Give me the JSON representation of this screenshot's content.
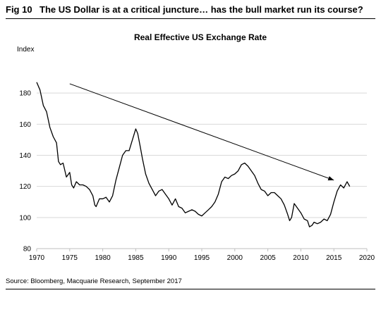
{
  "figure": {
    "label": "Fig 10",
    "title": "The US Dollar is at a critical juncture… has the bull market run its course?",
    "source": "Source: Bloomberg, Macquarie Research, September 2017"
  },
  "chart_data": {
    "type": "line",
    "title": "Real Effective US Exchange Rate",
    "ylabel": "Index",
    "xlabel": "",
    "xlim": [
      1970,
      2020
    ],
    "ylim": [
      80,
      200
    ],
    "x_ticks": [
      1970,
      1975,
      1980,
      1985,
      1990,
      1995,
      2000,
      2005,
      2010,
      2015,
      2020
    ],
    "y_ticks": [
      80,
      100,
      120,
      140,
      160,
      180
    ],
    "grid": "horizontal",
    "legend": "none",
    "colors": {
      "line": "#000000",
      "grid": "#d9d9d9",
      "axis": "#bfbfbf"
    },
    "series": [
      {
        "values": [
          [
            1970.0,
            187
          ],
          [
            1970.5,
            182
          ],
          [
            1971.0,
            172
          ],
          [
            1971.5,
            168
          ],
          [
            1972.0,
            158
          ],
          [
            1972.5,
            152
          ],
          [
            1973.0,
            148
          ],
          [
            1973.3,
            136
          ],
          [
            1973.6,
            134
          ],
          [
            1974.0,
            135
          ],
          [
            1974.5,
            126
          ],
          [
            1975.0,
            129
          ],
          [
            1975.3,
            121
          ],
          [
            1975.6,
            119
          ],
          [
            1976.0,
            123
          ],
          [
            1976.5,
            121
          ],
          [
            1977.0,
            121
          ],
          [
            1977.5,
            120
          ],
          [
            1978.0,
            118
          ],
          [
            1978.5,
            114
          ],
          [
            1978.8,
            108
          ],
          [
            1979.0,
            107
          ],
          [
            1979.5,
            112
          ],
          [
            1980.0,
            112
          ],
          [
            1980.5,
            113
          ],
          [
            1981.0,
            110
          ],
          [
            1981.5,
            114
          ],
          [
            1982.0,
            124
          ],
          [
            1982.5,
            132
          ],
          [
            1983.0,
            140
          ],
          [
            1983.5,
            143
          ],
          [
            1984.0,
            143
          ],
          [
            1984.5,
            150
          ],
          [
            1985.0,
            157
          ],
          [
            1985.3,
            154
          ],
          [
            1985.7,
            145
          ],
          [
            1986.0,
            138
          ],
          [
            1986.5,
            128
          ],
          [
            1987.0,
            122
          ],
          [
            1987.5,
            118
          ],
          [
            1988.0,
            114
          ],
          [
            1988.5,
            117
          ],
          [
            1989.0,
            118
          ],
          [
            1989.5,
            115
          ],
          [
            1990.0,
            112
          ],
          [
            1990.5,
            108
          ],
          [
            1991.0,
            112
          ],
          [
            1991.5,
            107
          ],
          [
            1992.0,
            106
          ],
          [
            1992.5,
            103
          ],
          [
            1993.0,
            104
          ],
          [
            1993.5,
            105
          ],
          [
            1994.0,
            104
          ],
          [
            1994.5,
            102
          ],
          [
            1995.0,
            101
          ],
          [
            1995.5,
            103
          ],
          [
            1996.0,
            105
          ],
          [
            1996.5,
            107
          ],
          [
            1997.0,
            110
          ],
          [
            1997.5,
            115
          ],
          [
            1998.0,
            123
          ],
          [
            1998.5,
            126
          ],
          [
            1999.0,
            125
          ],
          [
            1999.5,
            127
          ],
          [
            2000.0,
            128
          ],
          [
            2000.5,
            130
          ],
          [
            2001.0,
            134
          ],
          [
            2001.5,
            135
          ],
          [
            2002.0,
            133
          ],
          [
            2002.5,
            130
          ],
          [
            2003.0,
            127
          ],
          [
            2003.5,
            122
          ],
          [
            2004.0,
            118
          ],
          [
            2004.5,
            117
          ],
          [
            2005.0,
            114
          ],
          [
            2005.5,
            116
          ],
          [
            2006.0,
            116
          ],
          [
            2006.5,
            114
          ],
          [
            2007.0,
            112
          ],
          [
            2007.5,
            108
          ],
          [
            2008.0,
            102
          ],
          [
            2008.3,
            98
          ],
          [
            2008.6,
            100
          ],
          [
            2009.0,
            109
          ],
          [
            2009.5,
            106
          ],
          [
            2010.0,
            103
          ],
          [
            2010.5,
            99
          ],
          [
            2011.0,
            98
          ],
          [
            2011.3,
            94
          ],
          [
            2011.7,
            95
          ],
          [
            2012.0,
            97
          ],
          [
            2012.5,
            96
          ],
          [
            2013.0,
            97
          ],
          [
            2013.5,
            99
          ],
          [
            2014.0,
            98
          ],
          [
            2014.5,
            102
          ],
          [
            2015.0,
            110
          ],
          [
            2015.5,
            117
          ],
          [
            2016.0,
            121
          ],
          [
            2016.5,
            119
          ],
          [
            2017.0,
            123
          ],
          [
            2017.4,
            120
          ]
        ]
      }
    ],
    "annotations": [
      {
        "type": "arrow",
        "from": [
          1975,
          186
        ],
        "to": [
          2015,
          124
        ]
      }
    ]
  }
}
